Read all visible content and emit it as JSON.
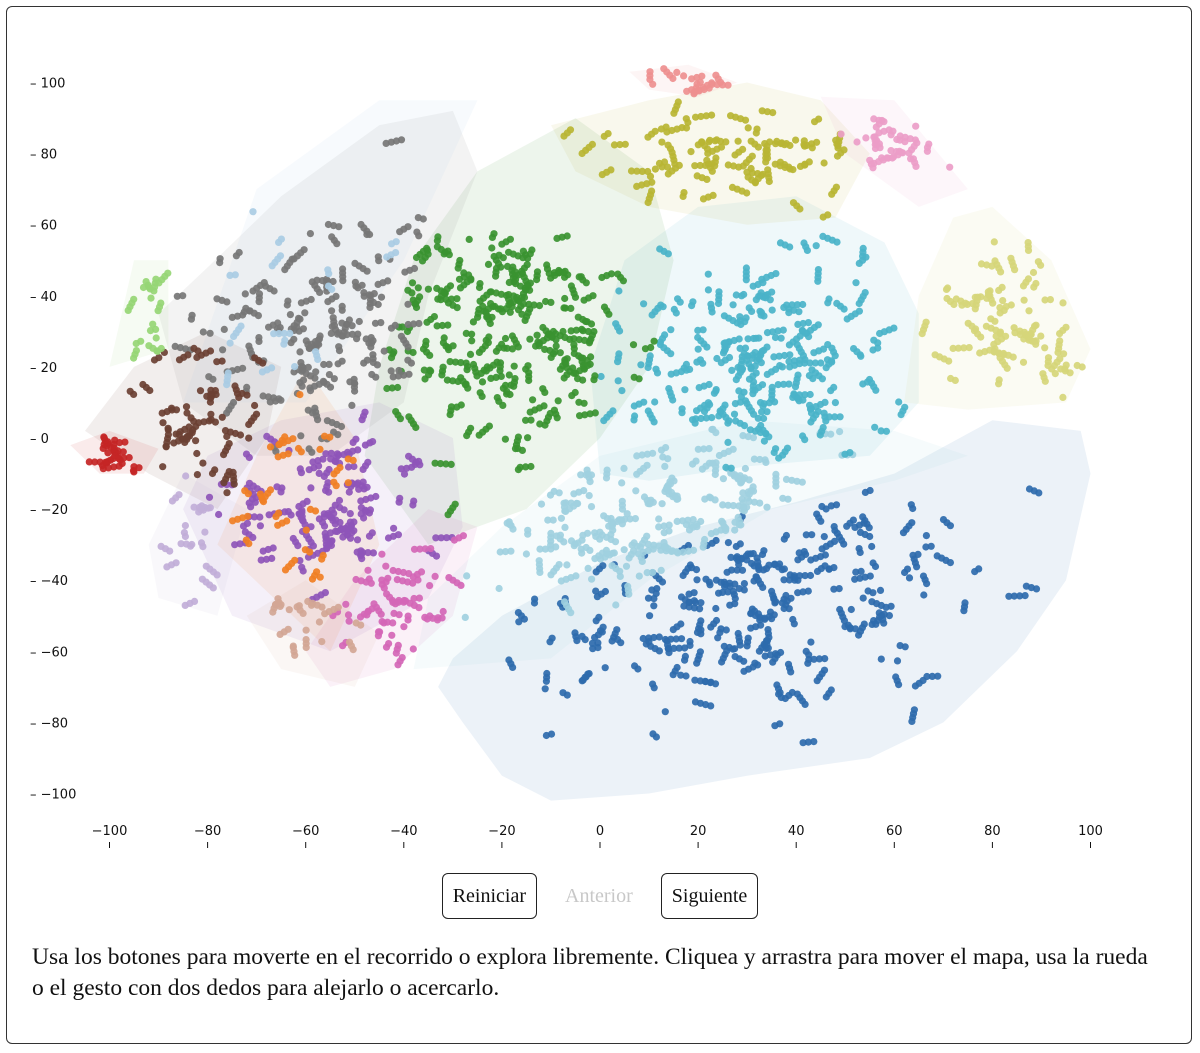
{
  "controls": {
    "reset_label": "Reiniciar",
    "previous_label": "Anterior",
    "next_label": "Siguiente"
  },
  "description": "Usa los botones para moverte en el recorrido o explora libremente. Cliquea y arrastra para mover el mapa, usa la rueda o el gesto con dos dedos para alejarlo o acercarlo.",
  "chart_data": {
    "type": "scatter",
    "title": "",
    "xlabel": "",
    "ylabel": "",
    "xlim": [
      -110,
      102
    ],
    "ylim": [
      -102,
      104
    ],
    "x_ticks": [
      -100,
      -80,
      -60,
      -40,
      -20,
      0,
      20,
      40,
      60,
      80,
      100
    ],
    "y_ticks": [
      100,
      80,
      60,
      40,
      20,
      0,
      -20,
      -40,
      -60,
      -80,
      -100
    ],
    "y_tick_prefix": "–",
    "grid": false,
    "legend": "none",
    "clusters": [
      {
        "color": "#2e6bad",
        "center": [
          30,
          -45
        ],
        "spread": [
          34,
          22
        ],
        "count": 520,
        "hull": [
          [
            -30,
            -62
          ],
          [
            -33,
            -70
          ],
          [
            -28,
            -80
          ],
          [
            -20,
            -95
          ],
          [
            -10,
            -102
          ],
          [
            10,
            -100
          ],
          [
            30,
            -95
          ],
          [
            55,
            -90
          ],
          [
            70,
            -80
          ],
          [
            85,
            -60
          ],
          [
            95,
            -40
          ],
          [
            100,
            -10
          ],
          [
            98,
            2
          ],
          [
            80,
            5
          ],
          [
            60,
            -10
          ],
          [
            40,
            -18
          ],
          [
            20,
            -25
          ],
          [
            0,
            -35
          ],
          [
            -20,
            -50
          ]
        ]
      },
      {
        "color": "#9fd0df",
        "center": [
          10,
          -25
        ],
        "spread": [
          24,
          18
        ],
        "count": 330,
        "hull": [
          [
            -38,
            -65
          ],
          [
            -35,
            -45
          ],
          [
            -20,
            -25
          ],
          [
            0,
            -5
          ],
          [
            30,
            5
          ],
          [
            60,
            2
          ],
          [
            75,
            -5
          ],
          [
            60,
            -12
          ],
          [
            35,
            -20
          ],
          [
            10,
            -40
          ],
          [
            -10,
            -62
          ]
        ]
      },
      {
        "color": "#4ab3c9",
        "center": [
          30,
          20
        ],
        "spread": [
          22,
          20
        ],
        "count": 440,
        "hull": [
          [
            0,
            -10
          ],
          [
            -2,
            20
          ],
          [
            5,
            50
          ],
          [
            20,
            65
          ],
          [
            40,
            68
          ],
          [
            58,
            55
          ],
          [
            65,
            35
          ],
          [
            65,
            10
          ],
          [
            55,
            -5
          ],
          [
            30,
            -8
          ],
          [
            10,
            -12
          ]
        ]
      },
      {
        "color": "#3a9330",
        "center": [
          -20,
          30
        ],
        "spread": [
          18,
          22
        ],
        "count": 470,
        "hull": [
          [
            -48,
            -5
          ],
          [
            -45,
            20
          ],
          [
            -38,
            50
          ],
          [
            -25,
            75
          ],
          [
            -5,
            90
          ],
          [
            10,
            75
          ],
          [
            15,
            50
          ],
          [
            10,
            20
          ],
          [
            0,
            0
          ],
          [
            -15,
            -20
          ],
          [
            -35,
            -30
          ]
        ]
      },
      {
        "color": "#767676",
        "center": [
          -55,
          30
        ],
        "spread": [
          18,
          22
        ],
        "count": 300,
        "hull": [
          [
            -90,
            35
          ],
          [
            -80,
            48
          ],
          [
            -65,
            68
          ],
          [
            -45,
            88
          ],
          [
            -30,
            92
          ],
          [
            -25,
            75
          ],
          [
            -35,
            40
          ],
          [
            -40,
            10
          ],
          [
            -55,
            -5
          ],
          [
            -70,
            -5
          ],
          [
            -85,
            10
          ]
        ]
      },
      {
        "color": "#8e55b8",
        "center": [
          -55,
          -20
        ],
        "spread": [
          15,
          14
        ],
        "count": 240,
        "hull": [
          [
            -85,
            -20
          ],
          [
            -80,
            -5
          ],
          [
            -65,
            5
          ],
          [
            -45,
            10
          ],
          [
            -30,
            0
          ],
          [
            -28,
            -25
          ],
          [
            -35,
            -45
          ],
          [
            -55,
            -60
          ],
          [
            -75,
            -50
          ]
        ]
      },
      {
        "color": "#d466b6",
        "center": [
          -42,
          -45
        ],
        "spread": [
          10,
          12
        ],
        "count": 100,
        "hull": [
          [
            -60,
            -60
          ],
          [
            -55,
            -70
          ],
          [
            -42,
            -65
          ],
          [
            -30,
            -50
          ],
          [
            -25,
            -25
          ],
          [
            -35,
            -20
          ],
          [
            -50,
            -40
          ]
        ]
      },
      {
        "color": "#6b4033",
        "center": [
          -82,
          5
        ],
        "spread": [
          12,
          14
        ],
        "count": 110,
        "hull": [
          [
            -105,
            2
          ],
          [
            -95,
            20
          ],
          [
            -80,
            30
          ],
          [
            -65,
            20
          ],
          [
            -68,
            0
          ],
          [
            -78,
            -20
          ],
          [
            -92,
            -10
          ]
        ]
      },
      {
        "color": "#c42525",
        "center": [
          -98,
          -5
        ],
        "spread": [
          5,
          4
        ],
        "count": 45,
        "hull": [
          [
            -108,
            -2
          ],
          [
            -100,
            2
          ],
          [
            -90,
            -3
          ],
          [
            -93,
            -10
          ],
          [
            -102,
            -10
          ]
        ]
      },
      {
        "color": "#f07f24",
        "center": [
          -62,
          -18
        ],
        "spread": [
          12,
          14
        ],
        "count": 60,
        "hull": [
          [
            -78,
            -30
          ],
          [
            -70,
            -5
          ],
          [
            -60,
            20
          ],
          [
            -50,
            0
          ],
          [
            -45,
            -30
          ],
          [
            -55,
            -60
          ]
        ]
      },
      {
        "color": "#b9b533",
        "center": [
          28,
          80
        ],
        "spread": [
          18,
          9
        ],
        "count": 200,
        "hull": [
          [
            -10,
            88
          ],
          [
            10,
            95
          ],
          [
            30,
            100
          ],
          [
            45,
            95
          ],
          [
            55,
            80
          ],
          [
            48,
            62
          ],
          [
            30,
            60
          ],
          [
            10,
            65
          ],
          [
            -5,
            75
          ]
        ]
      },
      {
        "color": "#d6d67a",
        "center": [
          85,
          35
        ],
        "spread": [
          10,
          16
        ],
        "count": 160,
        "hull": [
          [
            62,
            10
          ],
          [
            65,
            40
          ],
          [
            72,
            62
          ],
          [
            80,
            65
          ],
          [
            92,
            50
          ],
          [
            100,
            25
          ],
          [
            95,
            10
          ],
          [
            75,
            8
          ]
        ]
      },
      {
        "color": "#ee8f8f",
        "center": [
          20,
          100
        ],
        "spread": [
          8,
          3
        ],
        "count": 35,
        "hull": [
          [
            6,
            103
          ],
          [
            18,
            105
          ],
          [
            28,
            100
          ],
          [
            20,
            96
          ],
          [
            10,
            98
          ]
        ]
      },
      {
        "color": "#ec9dc8",
        "center": [
          60,
          82
        ],
        "spread": [
          12,
          7
        ],
        "count": 60,
        "hull": [
          [
            45,
            96
          ],
          [
            60,
            95
          ],
          [
            75,
            70
          ],
          [
            65,
            65
          ],
          [
            50,
            80
          ]
        ]
      },
      {
        "color": "#a9cce4",
        "center": [
          -65,
          30
        ],
        "spread": [
          25,
          30
        ],
        "count": 40,
        "hull": [
          [
            -85,
            10
          ],
          [
            -70,
            70
          ],
          [
            -45,
            95
          ],
          [
            -25,
            95
          ],
          [
            -40,
            50
          ],
          [
            -60,
            10
          ]
        ]
      },
      {
        "color": "#96d675",
        "center": [
          -92,
          35
        ],
        "spread": [
          4,
          10
        ],
        "count": 35,
        "hull": [
          [
            -100,
            20
          ],
          [
            -95,
            50
          ],
          [
            -88,
            50
          ],
          [
            -88,
            25
          ]
        ]
      },
      {
        "color": "#c1aed8",
        "center": [
          -82,
          -25
        ],
        "spread": [
          8,
          12
        ],
        "count": 40,
        "hull": [
          [
            -92,
            -30
          ],
          [
            -85,
            -10
          ],
          [
            -72,
            -20
          ],
          [
            -78,
            -50
          ],
          [
            -90,
            -45
          ]
        ]
      },
      {
        "color": "#d3a695",
        "center": [
          -60,
          -50
        ],
        "spread": [
          10,
          8
        ],
        "count": 40,
        "hull": [
          [
            -72,
            -50
          ],
          [
            -60,
            -40
          ],
          [
            -45,
            -55
          ],
          [
            -50,
            -70
          ],
          [
            -65,
            -65
          ]
        ]
      }
    ]
  }
}
